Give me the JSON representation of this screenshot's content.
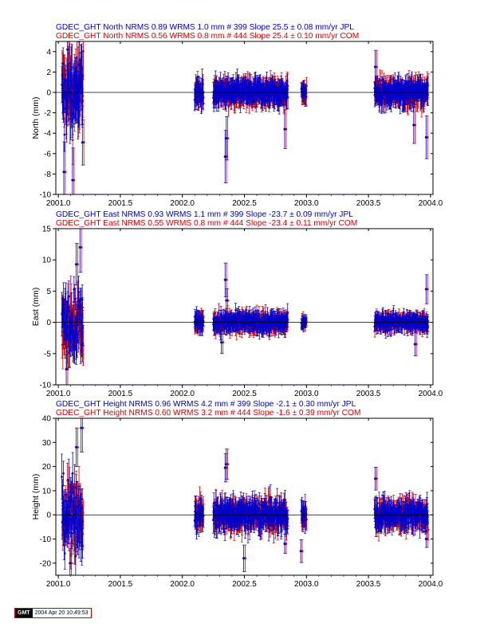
{
  "colors": {
    "jpl": "#0000cc",
    "com": "#dd0000",
    "axis": "#000000"
  },
  "footer": {
    "logo": "GMT",
    "timestamp": "2004 Apr 20 10:49:53"
  },
  "chart_data": [
    {
      "type": "scatter",
      "ylabel": "North (mm)",
      "xlim": [
        2000.98,
        2004.02
      ],
      "ylim": [
        -10,
        5
      ],
      "xticks": [
        "2001.0",
        "2001.5",
        "2002.0",
        "2002.5",
        "2003.0",
        "2003.5",
        "2004.0"
      ],
      "yticks": [
        "-10",
        "-8",
        "-6",
        "-4",
        "-2",
        "0",
        "2",
        "4"
      ],
      "legend": [
        "GDEC_GHT North NRMS 0.89 WRMS  1.0 mm # 399 Slope   25.5 ±  0.08 mm/yr JPL",
        "GDEC_GHT North NRMS 0.56 WRMS  0.8 mm # 444 Slope   25.4 ±  0.10 mm/yr COM"
      ],
      "segments": [
        {
          "x": [
            2001.03,
            2001.2
          ],
          "sd": 2.5,
          "err": 2.0
        },
        {
          "x": [
            2002.1,
            2002.17
          ],
          "sd": 0.7,
          "err": 0.9
        },
        {
          "x": [
            2002.25,
            2002.85
          ],
          "sd": 0.7,
          "err": 0.9
        },
        {
          "x": [
            2002.96,
            2003.0
          ],
          "sd": 0.4,
          "err": 0.7
        },
        {
          "x": [
            2003.55,
            2003.98
          ],
          "sd": 0.7,
          "err": 0.9
        }
      ],
      "outliers": [
        {
          "x": 2001.05,
          "y": -7.8
        },
        {
          "x": 2001.12,
          "y": -8.6
        },
        {
          "x": 2001.08,
          "y": 4.2
        },
        {
          "x": 2002.35,
          "y": -6.3
        },
        {
          "x": 2002.36,
          "y": -4.5
        },
        {
          "x": 2002.83,
          "y": -3.6
        },
        {
          "x": 2003.97,
          "y": -4.4
        },
        {
          "x": 2003.87,
          "y": -3.2
        },
        {
          "x": 2001.2,
          "y": -4.9
        },
        {
          "x": 2003.56,
          "y": 2.5
        }
      ]
    },
    {
      "type": "scatter",
      "ylabel": "East (mm)",
      "xlim": [
        2000.98,
        2004.02
      ],
      "ylim": [
        -10,
        15
      ],
      "xticks": [
        "2001.0",
        "2001.5",
        "2002.0",
        "2002.5",
        "2003.0",
        "2003.5",
        "2004.0"
      ],
      "yticks": [
        "-10",
        "-5",
        "0",
        "5",
        "10",
        "15"
      ],
      "legend": [
        "GDEC_GHT East NRMS 0.93 WRMS  1.1 mm # 399 Slope  -23.7 ±  0.09 mm/yr JPL",
        "GDEC_GHT East NRMS 0.55 WRMS  0.8 mm # 444 Slope  -23.4 ±  0.11 mm/yr COM"
      ],
      "segments": [
        {
          "x": [
            2001.03,
            2001.2
          ],
          "sd": 3.5,
          "err": 2.5
        },
        {
          "x": [
            2002.1,
            2002.17
          ],
          "sd": 0.8,
          "err": 1.1
        },
        {
          "x": [
            2002.25,
            2002.85
          ],
          "sd": 0.9,
          "err": 1.1
        },
        {
          "x": [
            2002.96,
            2003.0
          ],
          "sd": 0.5,
          "err": 0.8
        },
        {
          "x": [
            2003.55,
            2003.98
          ],
          "sd": 0.8,
          "err": 1.0
        }
      ],
      "outliers": [
        {
          "x": 2001.18,
          "y": 12.0
        },
        {
          "x": 2001.15,
          "y": 9.3
        },
        {
          "x": 2001.07,
          "y": -7.5
        },
        {
          "x": 2002.35,
          "y": 6.8
        },
        {
          "x": 2002.36,
          "y": 3.5
        },
        {
          "x": 2003.97,
          "y": 5.3
        },
        {
          "x": 2003.88,
          "y": -3.5
        },
        {
          "x": 2002.32,
          "y": -3.2
        }
      ]
    },
    {
      "type": "scatter",
      "ylabel": "Height (mm)",
      "xlim": [
        2000.98,
        2004.02
      ],
      "ylim": [
        -25,
        40
      ],
      "xticks": [
        "2001.0",
        "2001.5",
        "2002.0",
        "2002.5",
        "2003.0",
        "2003.5",
        "2004.0"
      ],
      "yticks": [
        "-20",
        "-10",
        "0",
        "10",
        "20",
        "30",
        "40"
      ],
      "legend": [
        "GDEC_GHT Height NRMS 0.96 WRMS  4.2 mm # 399 Slope   -2.1 ±  0.30 mm/yr JPL",
        "GDEC_GHT Height NRMS 0.60 WRMS  3.2 mm # 444 Slope   -1.6 ±  0.39 mm/yr COM"
      ],
      "segments": [
        {
          "x": [
            2001.03,
            2001.2
          ],
          "sd": 10.0,
          "err": 7.0
        },
        {
          "x": [
            2002.1,
            2002.17
          ],
          "sd": 3.5,
          "err": 4.0
        },
        {
          "x": [
            2002.25,
            2002.85
          ],
          "sd": 3.8,
          "err": 4.2
        },
        {
          "x": [
            2002.96,
            2003.0
          ],
          "sd": 3.0,
          "err": 3.5
        },
        {
          "x": [
            2003.55,
            2003.98
          ],
          "sd": 3.5,
          "err": 4.0
        }
      ],
      "outliers": [
        {
          "x": 2001.19,
          "y": 36.0
        },
        {
          "x": 2001.15,
          "y": 28.0
        },
        {
          "x": 2001.1,
          "y": -20.0
        },
        {
          "x": 2002.36,
          "y": 21.0
        },
        {
          "x": 2002.35,
          "y": 19.5
        },
        {
          "x": 2002.83,
          "y": -12.0
        },
        {
          "x": 2003.97,
          "y": -10.0
        },
        {
          "x": 2002.5,
          "y": -18.0
        },
        {
          "x": 2002.96,
          "y": -15.0
        },
        {
          "x": 2003.56,
          "y": 15.0
        }
      ]
    }
  ]
}
